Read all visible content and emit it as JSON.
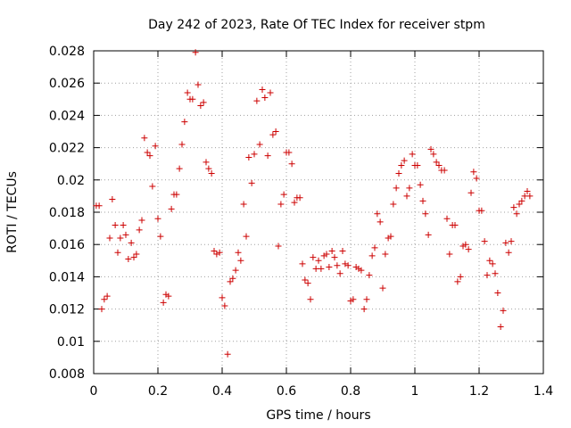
{
  "chart_data": {
    "type": "scatter",
    "title": "Day 242 of 2023, Rate Of TEC Index for receiver stpm",
    "xlabel": "GPS time / hours",
    "ylabel": "ROTI / TECUs",
    "xlim": [
      0,
      1.4
    ],
    "ylim": [
      0.008,
      0.028
    ],
    "xticks": [
      "0",
      "0.2",
      "0.4",
      "0.6",
      "0.8",
      "1",
      "1.2",
      "1.4"
    ],
    "yticks": [
      "0.008",
      "0.01",
      "0.012",
      "0.014",
      "0.016",
      "0.018",
      "0.02",
      "0.022",
      "0.024",
      "0.026",
      "0.028"
    ],
    "grid": true,
    "marker": "plus",
    "color": "#cc0000",
    "points": [
      [
        0.008,
        0.0184
      ],
      [
        0.017,
        0.0184
      ],
      [
        0.025,
        0.012
      ],
      [
        0.033,
        0.0126
      ],
      [
        0.042,
        0.0128
      ],
      [
        0.05,
        0.0164
      ],
      [
        0.058,
        0.0188
      ],
      [
        0.067,
        0.0172
      ],
      [
        0.075,
        0.0155
      ],
      [
        0.083,
        0.0164
      ],
      [
        0.092,
        0.0172
      ],
      [
        0.1,
        0.0166
      ],
      [
        0.108,
        0.0151
      ],
      [
        0.117,
        0.0161
      ],
      [
        0.125,
        0.0152
      ],
      [
        0.133,
        0.0154
      ],
      [
        0.142,
        0.0169
      ],
      [
        0.15,
        0.0175
      ],
      [
        0.158,
        0.0226
      ],
      [
        0.167,
        0.0217
      ],
      [
        0.175,
        0.0215
      ],
      [
        0.183,
        0.0196
      ],
      [
        0.192,
        0.0221
      ],
      [
        0.2,
        0.0176
      ],
      [
        0.208,
        0.0165
      ],
      [
        0.217,
        0.0124
      ],
      [
        0.225,
        0.0129
      ],
      [
        0.233,
        0.0128
      ],
      [
        0.242,
        0.0182
      ],
      [
        0.25,
        0.0191
      ],
      [
        0.258,
        0.0191
      ],
      [
        0.267,
        0.0207
      ],
      [
        0.275,
        0.0222
      ],
      [
        0.283,
        0.0236
      ],
      [
        0.292,
        0.0254
      ],
      [
        0.3,
        0.025
      ],
      [
        0.308,
        0.025
      ],
      [
        0.317,
        0.0279
      ],
      [
        0.325,
        0.0259
      ],
      [
        0.333,
        0.0246
      ],
      [
        0.342,
        0.0248
      ],
      [
        0.35,
        0.0211
      ],
      [
        0.358,
        0.0207
      ],
      [
        0.367,
        0.0204
      ],
      [
        0.375,
        0.0156
      ],
      [
        0.383,
        0.0154
      ],
      [
        0.392,
        0.0155
      ],
      [
        0.4,
        0.0127
      ],
      [
        0.408,
        0.0122
      ],
      [
        0.417,
        0.0092
      ],
      [
        0.425,
        0.0137
      ],
      [
        0.433,
        0.0139
      ],
      [
        0.442,
        0.0144
      ],
      [
        0.45,
        0.0155
      ],
      [
        0.458,
        0.015
      ],
      [
        0.467,
        0.0185
      ],
      [
        0.475,
        0.0165
      ],
      [
        0.483,
        0.0214
      ],
      [
        0.492,
        0.0198
      ],
      [
        0.5,
        0.0216
      ],
      [
        0.508,
        0.0249
      ],
      [
        0.517,
        0.0222
      ],
      [
        0.525,
        0.0256
      ],
      [
        0.533,
        0.0251
      ],
      [
        0.542,
        0.0215
      ],
      [
        0.55,
        0.0254
      ],
      [
        0.558,
        0.0228
      ],
      [
        0.567,
        0.023
      ],
      [
        0.575,
        0.0159
      ],
      [
        0.583,
        0.0185
      ],
      [
        0.592,
        0.0191
      ],
      [
        0.6,
        0.0217
      ],
      [
        0.608,
        0.0217
      ],
      [
        0.617,
        0.021
      ],
      [
        0.625,
        0.0186
      ],
      [
        0.633,
        0.0189
      ],
      [
        0.642,
        0.0189
      ],
      [
        0.65,
        0.0148
      ],
      [
        0.658,
        0.0138
      ],
      [
        0.667,
        0.0136
      ],
      [
        0.675,
        0.0126
      ],
      [
        0.683,
        0.0152
      ],
      [
        0.692,
        0.0145
      ],
      [
        0.7,
        0.015
      ],
      [
        0.708,
        0.0145
      ],
      [
        0.717,
        0.0153
      ],
      [
        0.725,
        0.0154
      ],
      [
        0.733,
        0.0146
      ],
      [
        0.742,
        0.0156
      ],
      [
        0.75,
        0.0152
      ],
      [
        0.758,
        0.0147
      ],
      [
        0.767,
        0.0142
      ],
      [
        0.775,
        0.0156
      ],
      [
        0.783,
        0.0148
      ],
      [
        0.792,
        0.0147
      ],
      [
        0.8,
        0.0125
      ],
      [
        0.808,
        0.0126
      ],
      [
        0.817,
        0.0146
      ],
      [
        0.825,
        0.0145
      ],
      [
        0.833,
        0.0144
      ],
      [
        0.842,
        0.012
      ],
      [
        0.85,
        0.0126
      ],
      [
        0.858,
        0.0141
      ],
      [
        0.867,
        0.0153
      ],
      [
        0.875,
        0.0158
      ],
      [
        0.883,
        0.0179
      ],
      [
        0.892,
        0.0174
      ],
      [
        0.9,
        0.0133
      ],
      [
        0.908,
        0.0154
      ],
      [
        0.917,
        0.0164
      ],
      [
        0.925,
        0.0165
      ],
      [
        0.933,
        0.0185
      ],
      [
        0.942,
        0.0195
      ],
      [
        0.95,
        0.0204
      ],
      [
        0.958,
        0.0209
      ],
      [
        0.967,
        0.0212
      ],
      [
        0.975,
        0.019
      ],
      [
        0.983,
        0.0195
      ],
      [
        0.992,
        0.0216
      ],
      [
        1.0,
        0.0209
      ],
      [
        1.008,
        0.0209
      ],
      [
        1.017,
        0.0197
      ],
      [
        1.025,
        0.0187
      ],
      [
        1.033,
        0.0179
      ],
      [
        1.042,
        0.0166
      ],
      [
        1.05,
        0.0219
      ],
      [
        1.058,
        0.0216
      ],
      [
        1.067,
        0.0211
      ],
      [
        1.075,
        0.0209
      ],
      [
        1.083,
        0.0206
      ],
      [
        1.092,
        0.0206
      ],
      [
        1.1,
        0.0176
      ],
      [
        1.108,
        0.0154
      ],
      [
        1.117,
        0.0172
      ],
      [
        1.125,
        0.0172
      ],
      [
        1.133,
        0.0137
      ],
      [
        1.142,
        0.014
      ],
      [
        1.15,
        0.0159
      ],
      [
        1.158,
        0.016
      ],
      [
        1.167,
        0.0157
      ],
      [
        1.175,
        0.0192
      ],
      [
        1.183,
        0.0205
      ],
      [
        1.192,
        0.0201
      ],
      [
        1.2,
        0.0181
      ],
      [
        1.208,
        0.0181
      ],
      [
        1.217,
        0.0162
      ],
      [
        1.225,
        0.0141
      ],
      [
        1.233,
        0.015
      ],
      [
        1.242,
        0.0148
      ],
      [
        1.25,
        0.0142
      ],
      [
        1.258,
        0.013
      ],
      [
        1.267,
        0.0109
      ],
      [
        1.275,
        0.0119
      ],
      [
        1.283,
        0.0161
      ],
      [
        1.292,
        0.0155
      ],
      [
        1.3,
        0.0162
      ],
      [
        1.308,
        0.0183
      ],
      [
        1.317,
        0.0179
      ],
      [
        1.325,
        0.0185
      ],
      [
        1.333,
        0.0187
      ],
      [
        1.342,
        0.019
      ],
      [
        1.35,
        0.0193
      ],
      [
        1.358,
        0.019
      ]
    ]
  }
}
